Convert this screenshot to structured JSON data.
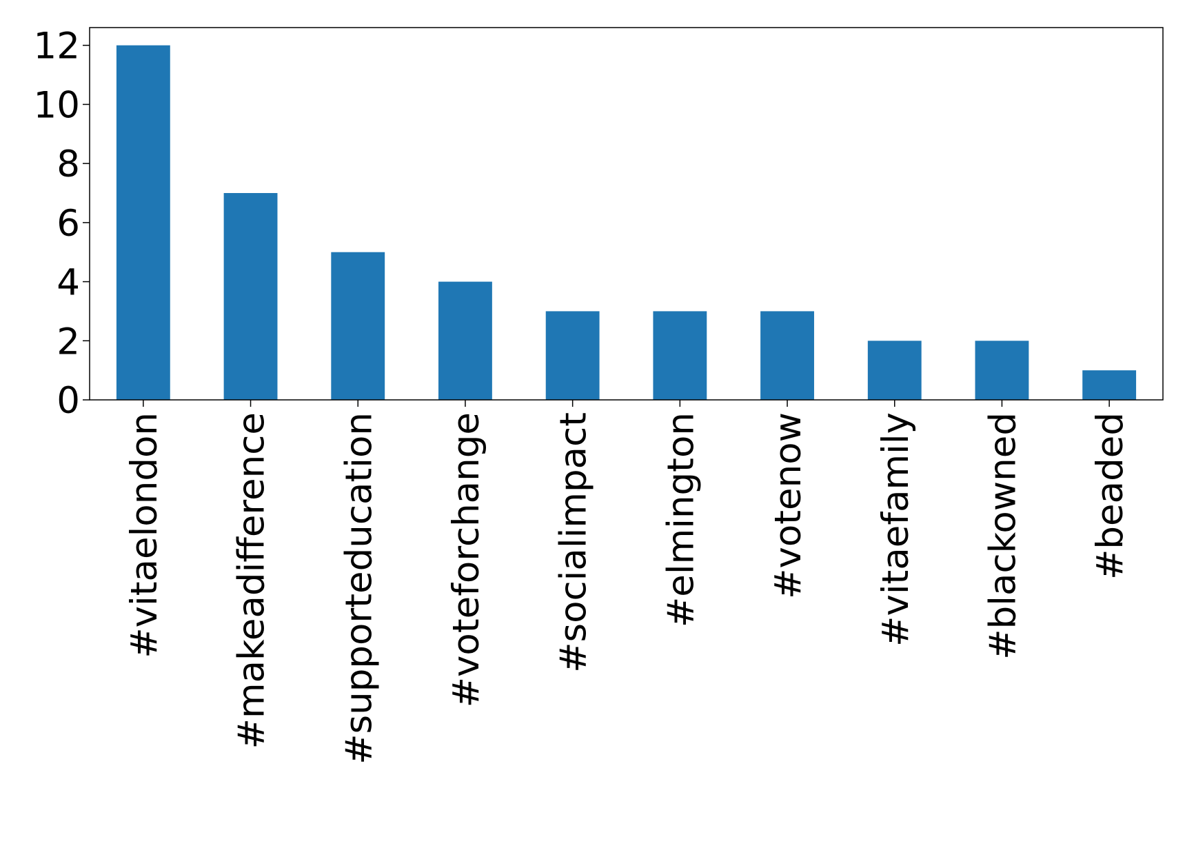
{
  "chart_data": {
    "type": "bar",
    "categories": [
      "#vitaelondon",
      "#makeadifference",
      "#supporteducation",
      "#voteforchange",
      "#socialimpact",
      "#elmington",
      "#votenow",
      "#vitaefamily",
      "#blackowned",
      "#beaded"
    ],
    "values": [
      12,
      7,
      5,
      4,
      3,
      3,
      3,
      2,
      2,
      1
    ],
    "color": "#1f77b4",
    "ylim": [
      0,
      12.6
    ],
    "yticks": [
      0,
      2,
      4,
      6,
      8,
      10,
      12
    ],
    "grid": false
  }
}
